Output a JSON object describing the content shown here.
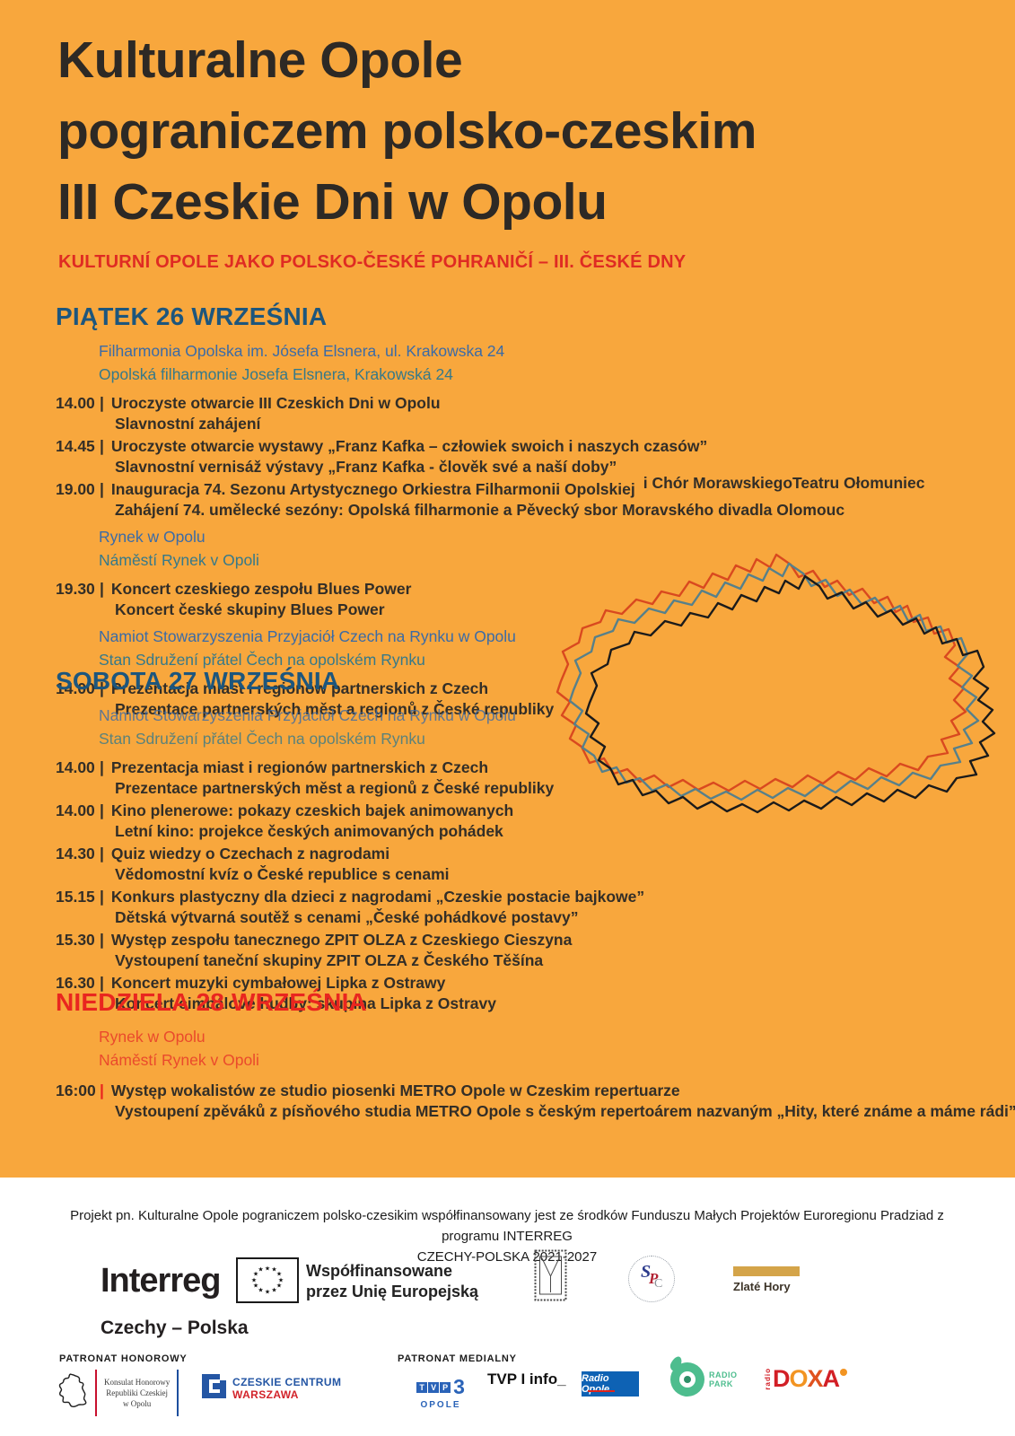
{
  "poster": {
    "title_lines": [
      "Kulturalne Opole",
      "pograniczem polsko-czeskim",
      "III Czeskie Dni w Opolu"
    ],
    "subtitle": "KULTURNÍ OPOLE JAKO POLSKO-ČESKÉ POHRANIČÍ – III. ČESKÉ DNY"
  },
  "schedule": {
    "pipe": "|",
    "days": [
      {
        "heading": "PIĄTEK 26 WRZEŚNIA",
        "items": [
          {
            "pl": "Filharmonia Opolska im. Jósefa Elsnera, ul. Krakowska 24",
            "cz": "Opolská filharmonie Josefa Elsnera, Krakowská 24"
          },
          {
            "time": "14.00",
            "pl": "Uroczyste otwarcie III Czeskich Dni w Opolu",
            "cz": "Slavnostní zahájení"
          },
          {
            "time": "14.45",
            "pl": "Uroczyste otwarcie wystawy „Franz Kafka – człowiek swoich i naszych czasów”",
            "cz": "Slavnostní vernisáž výstavy „Franz Kafka - člověk své a naší doby”"
          },
          {
            "time": "19.00",
            "pl": "Inauguracja 74. Sezonu Artystycznego Orkiestra Filharmonii Opolskiej",
            "side": "i Chór MorawskiegoTeatru Ołomuniec",
            "cz": "Zahájení 74. umělecké sezóny: Opolská filharmonie a Pěvecký sbor Moravského divadla Olomouc"
          },
          {
            "pl": "Rynek w Opolu",
            "cz": "Náměstí Rynek v Opoli"
          },
          {
            "time": "19.30",
            "pl": "Koncert czeskiego zespołu Blues Power",
            "cz": "Koncert české skupiny Blues Power"
          },
          {
            "pl": "Namiot Stowarzyszenia Przyjaciół Czech na Rynku w Opolu",
            "cz": "Stan Sdružení přátel Čech na opolském Rynku"
          },
          {
            "time": "14.00",
            "pl": "Prezentacja miast i regionów partnerskich z Czech",
            "cz": "Prezentace partnerských měst a regionů z České republiky"
          }
        ]
      },
      {
        "heading": "SOBOTA 27 WRZEŚNIA",
        "items": [
          {
            "pl": "Namiot Stowarzyszenia Przyjaciół Czech na Rynku w Opolu",
            "cz": "Stan Sdružení přátel Čech na opolském Rynku"
          },
          {
            "time": "14.00",
            "pl": "Prezentacja miast i regionów partnerskich z Czech",
            "cz": "Prezentace partnerských měst a regionů z České republiky"
          },
          {
            "time": "14.00",
            "pl": "Kino plenerowe: pokazy czeskich bajek animowanych",
            "cz": "Letní kino: projekce českých animovaných pohádek"
          },
          {
            "time": "14.30",
            "pl": "Quiz wiedzy o Czechach z nagrodami",
            "cz": "Vědomostní kvíz o České republice s cenami"
          },
          {
            "time": "15.15",
            "pl": "Konkurs plastyczny dla dzieci z nagrodami „Czeskie postacie bajkowe”",
            "cz": "Dětská výtvarná soutěž s cenami „České pohádkové postavy”"
          },
          {
            "time": "15.30",
            "pl": "Występ zespołu tanecznego ZPIT OLZA z Czeskiego Cieszyna",
            "cz": "Vystoupení taneční skupiny ZPIT OLZA z Českého Těšína"
          },
          {
            "time": "16.30",
            "pl": "Koncert muzyki cymbałowej Lipka z Ostrawy",
            "cz": "Koncert cimbálové hudby: skupina Lipka z Ostravy"
          }
        ]
      },
      {
        "heading": "NIEDZIELA 28 WRZEŚNIA",
        "items": [
          {
            "pl": "Rynek w Opolu",
            "cz": "Náměstí Rynek v Opoli"
          },
          {
            "time": "16:00",
            "pl": "Występ wokalistów ze studio piosenki METRO Opole w Czeskim repertuarze",
            "cz": "Vystoupení zpěváků z písňového studia METRO Opole s českým repertoárem nazvaným „Hity, které známe a máme rádi”"
          }
        ]
      }
    ]
  },
  "footer": {
    "funding_line1": "Projekt pn. Kulturalne Opole pograniczem polsko-czesikim współfinansowany jest ze środków Funduszu Małych Projektów Euroregionu Pradziad z programu INTERREG",
    "funding_line2": "CZECHY-POLSKA 2021-2027",
    "interreg": {
      "wordmark": "Interreg",
      "program": "Czechy – Polska",
      "cofunded_line1": "Współfinansowane",
      "cofunded_line2": "przez Unię Europejską"
    },
    "zlate_hory": "Zlaté Hory",
    "patronage": {
      "honorary_label": "PATRONAT HONOROWY",
      "media_label": "PATRONAT MEDIALNY",
      "konsulat_lines": [
        "Konsulat Honorowy",
        "Republiki Czeskiej",
        "w Opolu"
      ],
      "czech_centre_line1": "CZESKIE CENTRUM",
      "czech_centre_line2": "WARSZAWA",
      "tvp3": {
        "t": "T",
        "v": "V",
        "p": "P",
        "three": "3",
        "city": "OPOLE"
      },
      "tvp_info": "TVP I info_",
      "radio_opole": "Radio Opole",
      "radio_park_line1": "RADIO",
      "radio_park_line2": "PARK",
      "doxa": {
        "radio": "radio",
        "d": "D",
        "o": "O",
        "x": "X",
        "a": "A"
      }
    }
  },
  "colors": {
    "background_orange": "#F8A73D",
    "heading_blue": "#1d567d",
    "heading_red": "#e9261f",
    "venue_blue": "#3b6ba6",
    "venue_teal": "#35798a",
    "venue_red": "#ea4a2c",
    "text_dark": "#332e27",
    "map_outline_red": "#d9491f",
    "map_outline_teal": "#57808a",
    "map_outline_black": "#1b1b1b"
  }
}
